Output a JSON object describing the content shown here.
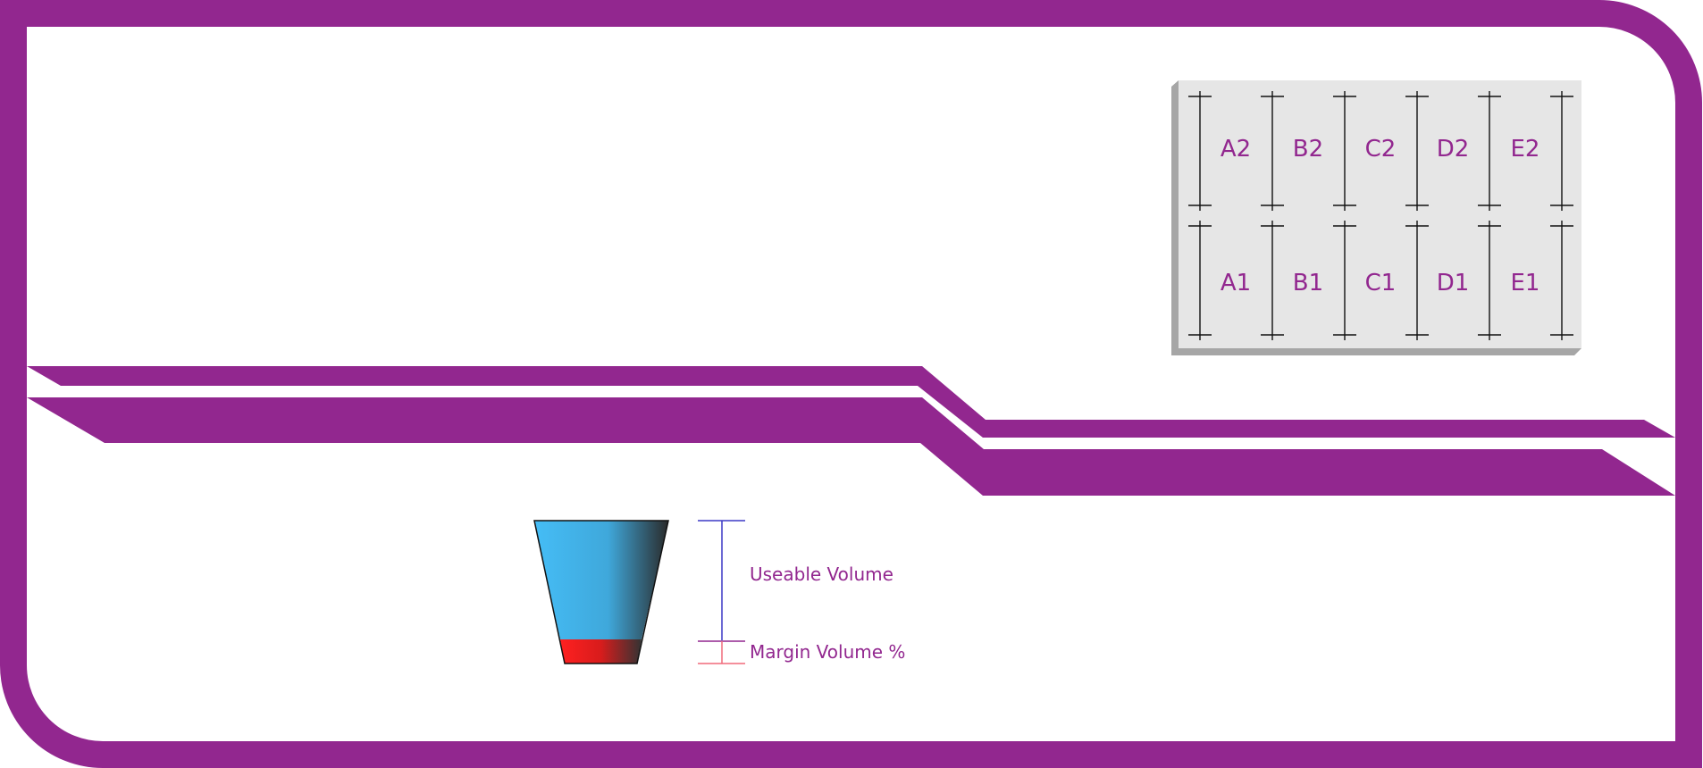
{
  "colors": {
    "frame": "#92278f",
    "label_text": "#92278f",
    "tray_face": "#e6e6e6",
    "tray_shade": "#a6a6a6",
    "divider": "#111111",
    "usable_fill_start": "#45bdf6",
    "usable_fill_end": "#2a2a2a",
    "margin_fill_start": "#ff2020",
    "margin_fill_end": "#333333",
    "usable_bracket": "#3b39c6",
    "margin_bracket_top": "#92278f",
    "margin_bracket_bottom": "#f06a7a"
  },
  "tray": {
    "rows": [
      {
        "cells": [
          "A2",
          "B2",
          "C2",
          "D2",
          "E2"
        ]
      },
      {
        "cells": [
          "A1",
          "B1",
          "C1",
          "D1",
          "E1"
        ]
      }
    ]
  },
  "legend": {
    "usable_label": "Useable Volume",
    "margin_label": "Margin Volume %"
  }
}
